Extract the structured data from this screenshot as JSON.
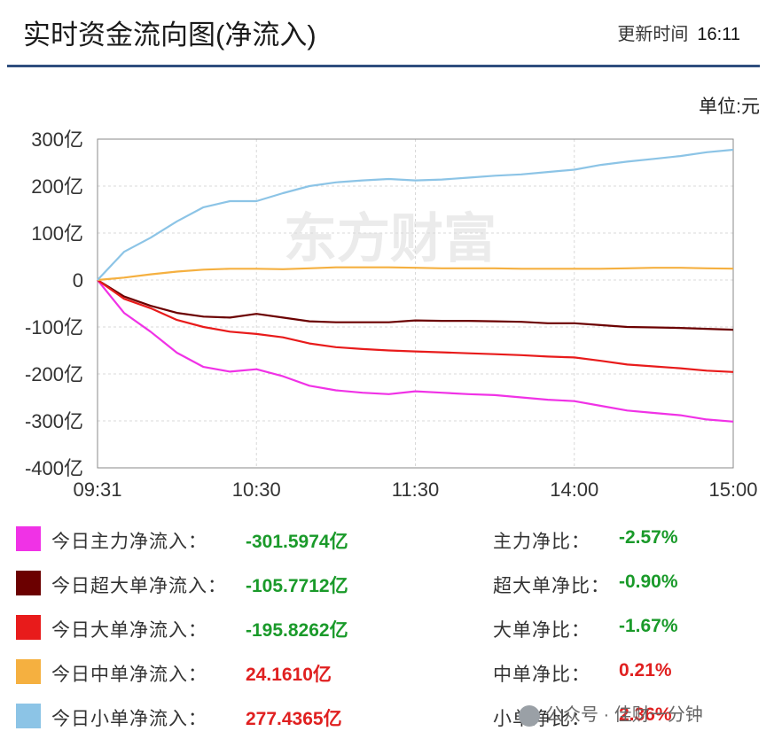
{
  "header": {
    "title": "实时资金流向图(净流入)",
    "update_label": "更新时间",
    "update_time": "16:11"
  },
  "unit_label": "单位:元",
  "chart_data": {
    "type": "line",
    "title": "实时资金流向图(净流入)",
    "ylabel": "",
    "xlabel": "",
    "y_unit": "亿",
    "ylim": [
      -400,
      300
    ],
    "y_ticks": [
      300,
      200,
      100,
      0,
      -100,
      -200,
      -300,
      -400
    ],
    "y_tick_labels": [
      "300亿",
      "200亿",
      "100亿",
      "0",
      "-100亿",
      "-200亿",
      "-300亿",
      "-400亿"
    ],
    "x_ticks": [
      "09:31",
      "10:30",
      "11:30",
      "14:00",
      "15:00"
    ],
    "grid": true,
    "x": [
      "09:31",
      "09:40",
      "09:50",
      "10:00",
      "10:10",
      "10:20",
      "10:30",
      "10:40",
      "10:50",
      "11:00",
      "11:10",
      "11:20",
      "11:30",
      "13:10",
      "13:20",
      "13:30",
      "13:40",
      "13:50",
      "14:00",
      "14:10",
      "14:20",
      "14:30",
      "14:40",
      "14:50",
      "15:00"
    ],
    "series": [
      {
        "name": "今日主力净流入",
        "color": "#f032e6",
        "values": [
          0,
          -70,
          -110,
          -155,
          -185,
          -195,
          -190,
          -205,
          -225,
          -235,
          -240,
          -243,
          -237,
          -240,
          -243,
          -245,
          -250,
          -255,
          -258,
          -268,
          -278,
          -283,
          -288,
          -297,
          -301.6
        ]
      },
      {
        "name": "今日超大单净流入",
        "color": "#6b0000",
        "values": [
          0,
          -35,
          -55,
          -70,
          -78,
          -80,
          -72,
          -80,
          -88,
          -90,
          -90,
          -90,
          -86,
          -87,
          -87,
          -88,
          -89,
          -92,
          -92,
          -96,
          -100,
          -101,
          -102,
          -104,
          -105.8
        ]
      },
      {
        "name": "今日大单净流入",
        "color": "#e81b1b",
        "values": [
          0,
          -40,
          -60,
          -85,
          -100,
          -110,
          -115,
          -122,
          -135,
          -143,
          -147,
          -150,
          -152,
          -154,
          -156,
          -158,
          -160,
          -163,
          -165,
          -172,
          -180,
          -184,
          -188,
          -193,
          -195.8
        ]
      },
      {
        "name": "今日中单净流入",
        "color": "#f5b040",
        "values": [
          0,
          5,
          12,
          18,
          22,
          24,
          24,
          23,
          25,
          27,
          27,
          27,
          26,
          25,
          25,
          25,
          24,
          24,
          24,
          24,
          25,
          26,
          26,
          25,
          24.2
        ]
      },
      {
        "name": "今日小单净流入",
        "color": "#8cc4e6",
        "values": [
          0,
          60,
          90,
          125,
          155,
          168,
          168,
          185,
          200,
          208,
          212,
          215,
          212,
          214,
          218,
          222,
          225,
          230,
          235,
          245,
          252,
          258,
          264,
          272,
          277.4
        ]
      }
    ]
  },
  "legend": [
    {
      "label": "今日主力净流入：",
      "value": "-301.5974亿",
      "ratio_label": "主力净比：",
      "ratio": "-2.57%",
      "color": "#f032e6",
      "sign": "neg"
    },
    {
      "label": "今日超大单净流入：",
      "value": "-105.7712亿",
      "ratio_label": "超大单净比：",
      "ratio": "-0.90%",
      "color": "#6b0000",
      "sign": "neg"
    },
    {
      "label": "今日大单净流入：",
      "value": "-195.8262亿",
      "ratio_label": "大单净比：",
      "ratio": "-1.67%",
      "color": "#e81b1b",
      "sign": "neg"
    },
    {
      "label": "今日中单净流入：",
      "value": "24.1610亿",
      "ratio_label": "中单净比：",
      "ratio": "0.21%",
      "color": "#f5b040",
      "sign": "pos"
    },
    {
      "label": "今日小单净流入：",
      "value": "277.4365亿",
      "ratio_label": "小单净比：",
      "ratio": "2.36%",
      "color": "#8cc4e6",
      "sign": "pos"
    }
  ],
  "watermarks": {
    "chart": "东方财富",
    "badge": "公众号 · 佳财一分钟"
  }
}
